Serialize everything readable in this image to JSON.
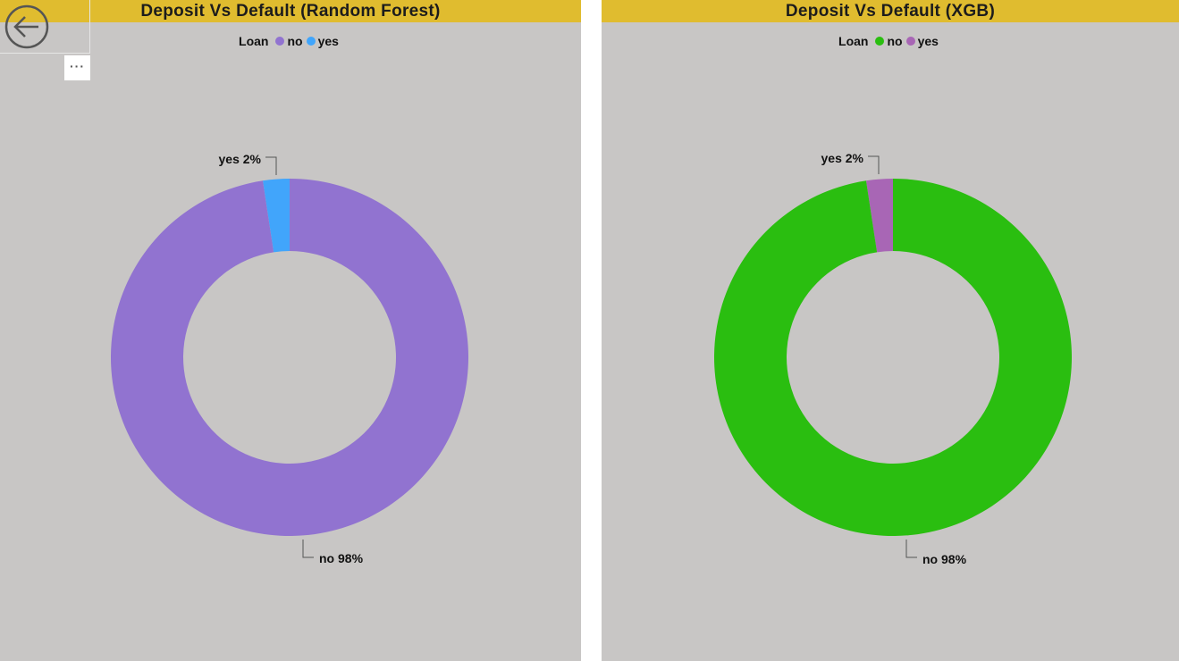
{
  "panels": [
    {
      "title": "Deposit Vs Default (Random Forest)",
      "legend_title": "Loan",
      "legend": [
        {
          "label": "no",
          "color": "#9173d0"
        },
        {
          "label": "yes",
          "color": "#41a5fb"
        }
      ]
    },
    {
      "title": "Deposit Vs Default (XGB)",
      "legend_title": "Loan",
      "legend": [
        {
          "label": "no",
          "color": "#2abe10"
        },
        {
          "label": "yes",
          "color": "#a866b5"
        }
      ]
    }
  ],
  "chart_data": [
    {
      "type": "pie",
      "title": "Deposit Vs Default (Random Forest)",
      "legend_title": "Loan",
      "categories": [
        "yes",
        "no"
      ],
      "values": [
        2.4,
        97.6
      ],
      "labels": [
        "yes 2%",
        "no 98%"
      ],
      "colors": [
        "#41a5fb",
        "#9173d0"
      ],
      "legend_position": "top"
    },
    {
      "type": "pie",
      "title": "Deposit Vs Default (XGB)",
      "legend_title": "Loan",
      "categories": [
        "yes",
        "no"
      ],
      "values": [
        2.4,
        97.6
      ],
      "labels": [
        "yes 2%",
        "no 98%"
      ],
      "colors": [
        "#a866b5",
        "#2abe10"
      ],
      "legend_position": "top"
    }
  ],
  "controls": {
    "more_options": "···"
  },
  "icons": {
    "back": "back-arrow-icon"
  }
}
